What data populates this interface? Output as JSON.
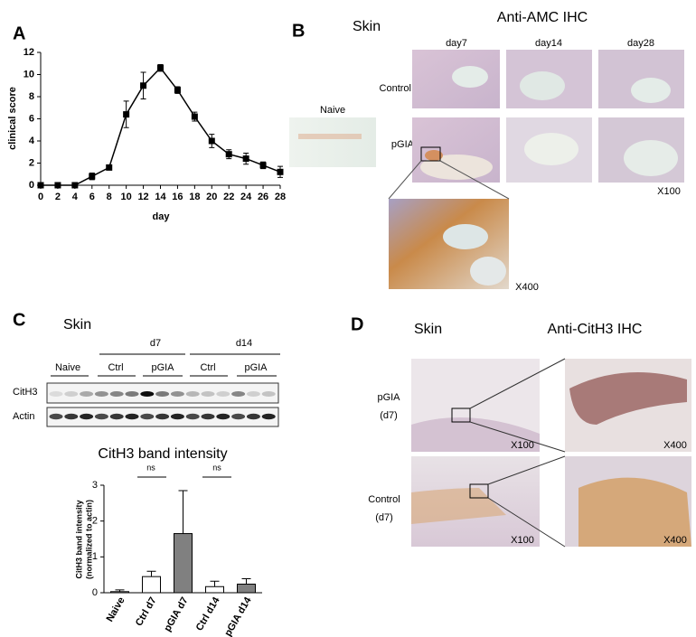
{
  "chart_data": [
    {
      "type": "line",
      "panel_label": "A",
      "xlabel": "day",
      "ylabel": "clinical score",
      "x": [
        0,
        2,
        4,
        6,
        8,
        10,
        12,
        14,
        16,
        18,
        20,
        22,
        24,
        26,
        28
      ],
      "series": [
        {
          "color": "#000000",
          "values": [
            0,
            0,
            0,
            0.8,
            1.6,
            6.4,
            9.0,
            10.6,
            8.6,
            6.2,
            4.0,
            2.8,
            2.4,
            1.8,
            1.2
          ],
          "errors": [
            0,
            0,
            0,
            0.3,
            0.15,
            1.2,
            1.2,
            0.3,
            0.3,
            0.4,
            0.6,
            0.4,
            0.5,
            0.3,
            0.5
          ]
        }
      ],
      "xlim": [
        0,
        28
      ],
      "xticks": [
        0,
        2,
        4,
        6,
        8,
        10,
        12,
        14,
        16,
        18,
        20,
        22,
        24,
        26,
        28
      ],
      "ylim": [
        0,
        12
      ],
      "yticks": [
        0,
        2,
        4,
        6,
        8,
        10,
        12
      ]
    },
    {
      "type": "bar",
      "title": "CitH3 band intensity",
      "ylabel": [
        "CitH3 band intensity",
        "(normalized to actin)"
      ],
      "categories": [
        "Naive",
        "Ctrl d7",
        "pGIA d7",
        "Ctrl d14",
        "pGIA d14"
      ],
      "values": [
        0.03,
        0.45,
        1.65,
        0.17,
        0.24
      ],
      "errors": [
        0.05,
        0.15,
        1.2,
        0.15,
        0.15
      ],
      "colors": [
        "#ffffff",
        "#ffffff",
        "#808080",
        "#ffffff",
        "#808080"
      ],
      "ylim": [
        0,
        3
      ],
      "yticks": [
        0,
        1,
        2,
        3
      ],
      "annotations": [
        "ns",
        "ns"
      ]
    }
  ],
  "panel_b": {
    "label": "B",
    "tissue": "Skin",
    "title": "Anti-AMC IHC",
    "columns": [
      "day7",
      "day14",
      "day28"
    ],
    "rows": [
      "Control",
      "pGIA"
    ],
    "naive": "Naive",
    "magnification_low": "X100",
    "magnification_high": "X400"
  },
  "panel_c": {
    "label": "C",
    "tissue": "Skin",
    "timepoints": [
      "d7",
      "d14"
    ],
    "groups": [
      "Naive",
      "Ctrl",
      "pGIA",
      "Ctrl",
      "pGIA"
    ],
    "bands": [
      "CitH3",
      "Actin"
    ]
  },
  "panel_d": {
    "label": "D",
    "tissue": "Skin",
    "title": "Anti-CitH3 IHC",
    "rows": [
      [
        "pGIA",
        "(d7)"
      ],
      [
        "Control",
        "(d7)"
      ]
    ],
    "magnifications": [
      "X100",
      "X400"
    ]
  }
}
